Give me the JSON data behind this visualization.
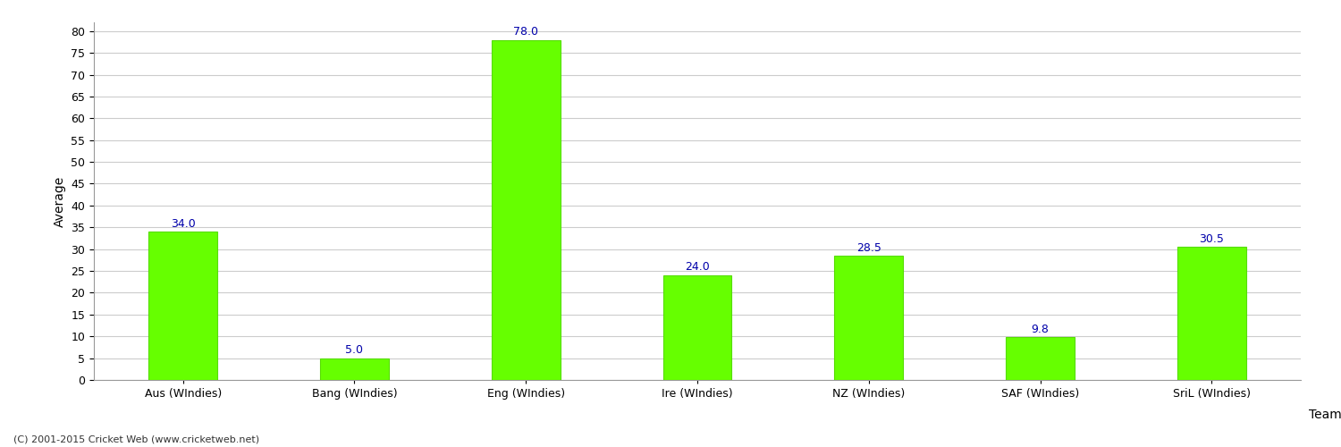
{
  "categories": [
    "Aus (WIndies)",
    "Bang (WIndies)",
    "Eng (WIndies)",
    "Ire (WIndies)",
    "NZ (WIndies)",
    "SAF (WIndies)",
    "SriL (WIndies)"
  ],
  "values": [
    34.0,
    5.0,
    78.0,
    24.0,
    28.5,
    9.8,
    30.5
  ],
  "bar_color": "#66ff00",
  "bar_edge_color": "#55dd00",
  "label_color": "#0000aa",
  "ylabel": "Average",
  "xlabel": "Team",
  "ylim": [
    0,
    82
  ],
  "yticks": [
    0,
    5,
    10,
    15,
    20,
    25,
    30,
    35,
    40,
    45,
    50,
    55,
    60,
    65,
    70,
    75,
    80
  ],
  "grid_color": "#cccccc",
  "background_color": "#ffffff",
  "bar_width": 0.4,
  "label_fontsize": 9,
  "axis_label_fontsize": 10,
  "tick_fontsize": 9,
  "footer_text": "(C) 2001-2015 Cricket Web (www.cricketweb.net)"
}
